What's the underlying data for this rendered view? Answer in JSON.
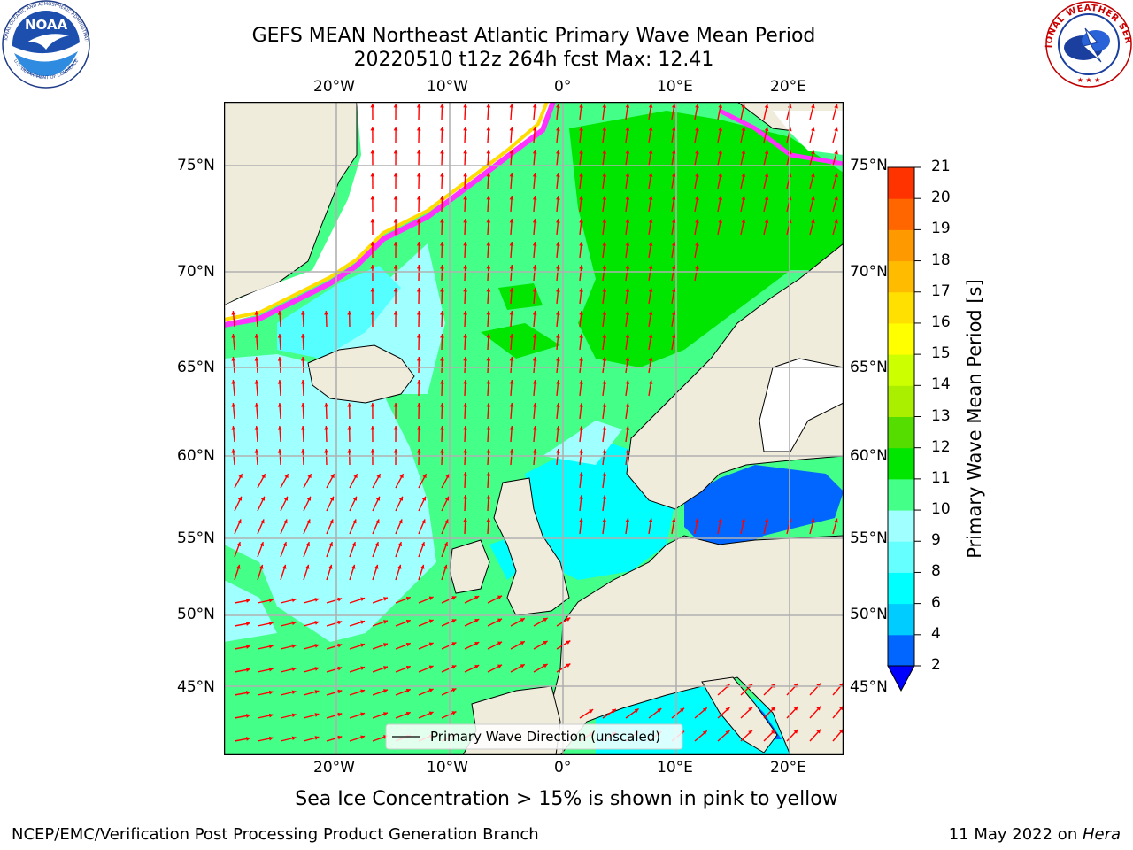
{
  "header": {
    "title_line1": "GEFS MEAN Northeast Atlantic Primary Wave Mean Period",
    "title_line2": "20220510 t12z 264h fcst   Max: 12.41"
  },
  "logos": {
    "noara_label": "NOAA",
    "noaa_ring_text": "NATIONAL OCEANIC AND ATMOSPHERIC ADMINISTRATION",
    "noaa_ring_bottom": "U.S. DEPARTMENT OF COMMERCE",
    "nws_ring_text": "NATIONAL WEATHER SERVICE"
  },
  "map": {
    "lon_labels_top": [
      "20°W",
      "10°W",
      "0°",
      "10°E",
      "20°E"
    ],
    "lon_labels_bottom": [
      "20°W",
      "10°W",
      "0°",
      "10°E",
      "20°E"
    ],
    "lat_labels_left": [
      "75°N",
      "70°N",
      "65°N",
      "60°N",
      "55°N",
      "50°N",
      "45°N"
    ],
    "lat_labels_right": [
      "75°N",
      "70°N",
      "65°N",
      "60°N",
      "55°N",
      "50°N",
      "45°N"
    ],
    "legend_label": "Primary Wave Direction (unscaled)",
    "colors": {
      "land": "#efecdc",
      "ice": "#ffffff",
      "coast": "#000000",
      "arrow": "#ff0000",
      "grid": "#b0b0b0"
    }
  },
  "colorbar": {
    "title": "Primary Wave Mean Period [s]",
    "levels": [
      "2",
      "4",
      "6",
      "8",
      "9",
      "10",
      "11",
      "12",
      "13",
      "14",
      "15",
      "16",
      "17",
      "18",
      "19",
      "20",
      "21"
    ],
    "colors": [
      "#0066ff",
      "#00ccff",
      "#00ffff",
      "#66ffff",
      "#a0ffff",
      "#44ff88",
      "#00e600",
      "#55dd00",
      "#aaee00",
      "#ccff00",
      "#ffff00",
      "#ffe000",
      "#ffbb00",
      "#ff9900",
      "#ff6600",
      "#ff3300",
      "#ff0000"
    ],
    "under_color": "#0000ff"
  },
  "caption": "Sea Ice Concentration > 15% is shown in pink to yellow",
  "footer": {
    "left": "NCEP/EMC/Verification Post Processing Product Generation Branch",
    "date": "11 May 2022 on ",
    "machine": "Hera"
  }
}
